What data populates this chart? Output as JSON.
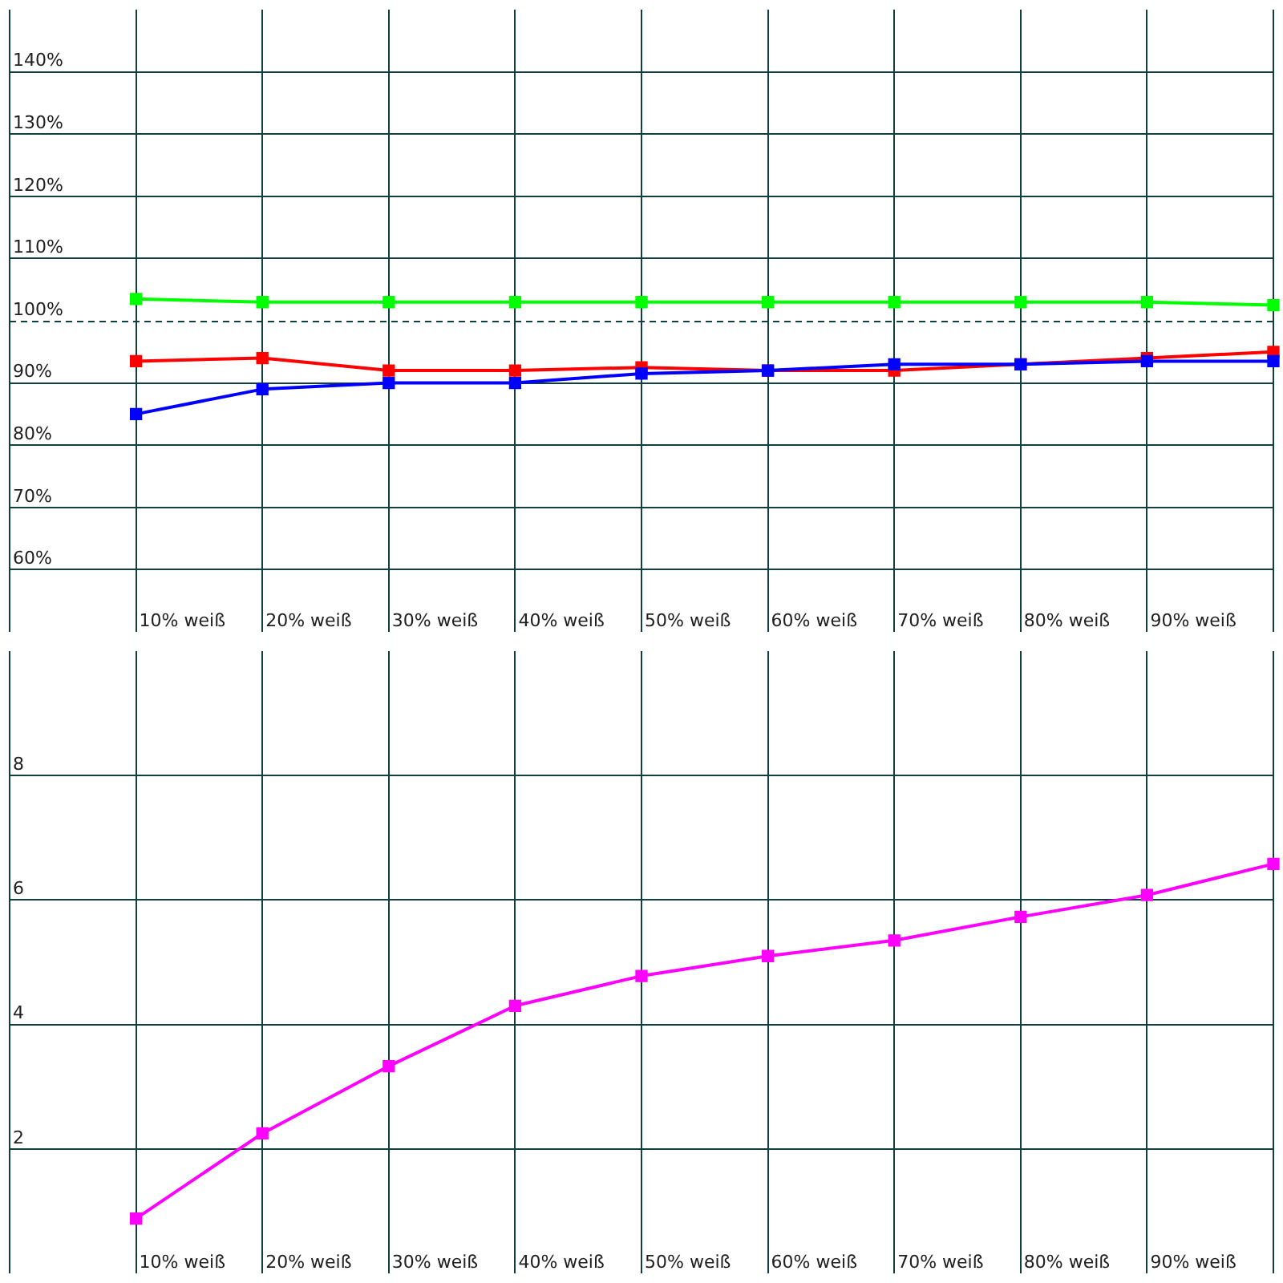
{
  "chart_data": [
    {
      "type": "line",
      "categories": [
        "10% weiß",
        "20% weiß",
        "30% weiß",
        "40% weiß",
        "50% weiß",
        "60% weiß",
        "70% weiß",
        "80% weiß",
        "90% weiß",
        null
      ],
      "series": [
        {
          "color": "#0000ff",
          "values": [
            85,
            89,
            90,
            90,
            91.5,
            92,
            93,
            93,
            93.5,
            93.5
          ]
        },
        {
          "color": "#ff0000",
          "values": [
            93.5,
            94,
            92,
            92,
            92.5,
            92,
            92,
            93,
            94,
            95
          ]
        },
        {
          "color": "#00ff00",
          "values": [
            103.5,
            103,
            103,
            103,
            103,
            103,
            103,
            103,
            103,
            102.5
          ]
        }
      ],
      "ylim": [
        50,
        150
      ],
      "yticks": [
        {
          "value": 60,
          "label": "60%"
        },
        {
          "value": 70,
          "label": "70%"
        },
        {
          "value": 80,
          "label": "80%"
        },
        {
          "value": 90,
          "label": "90%"
        },
        {
          "value": 100,
          "label": "100%"
        },
        {
          "value": 110,
          "label": "110%"
        },
        {
          "value": 120,
          "label": "120%"
        },
        {
          "value": 130,
          "label": "130%"
        },
        {
          "value": 140,
          "label": "140%"
        }
      ],
      "ref_lines": [
        {
          "axis": "y",
          "value": 100,
          "line_style": "dashed"
        }
      ],
      "grid": true,
      "marker": "square",
      "legend": false
    },
    {
      "type": "line",
      "categories": [
        "10% weiß",
        "20% weiß",
        "30% weiß",
        "40% weiß",
        "50% weiß",
        "60% weiß",
        "70% weiß",
        "80% weiß",
        "90% weiß",
        null
      ],
      "series": [
        {
          "color": "#ff00ff",
          "values": [
            0.88,
            2.25,
            3.33,
            4.3,
            4.78,
            5.1,
            5.35,
            5.73,
            6.08,
            6.58
          ]
        }
      ],
      "ylim": [
        0,
        10
      ],
      "yticks": [
        2,
        4,
        6,
        8
      ],
      "grid": true,
      "marker": "square",
      "legend": false
    }
  ]
}
